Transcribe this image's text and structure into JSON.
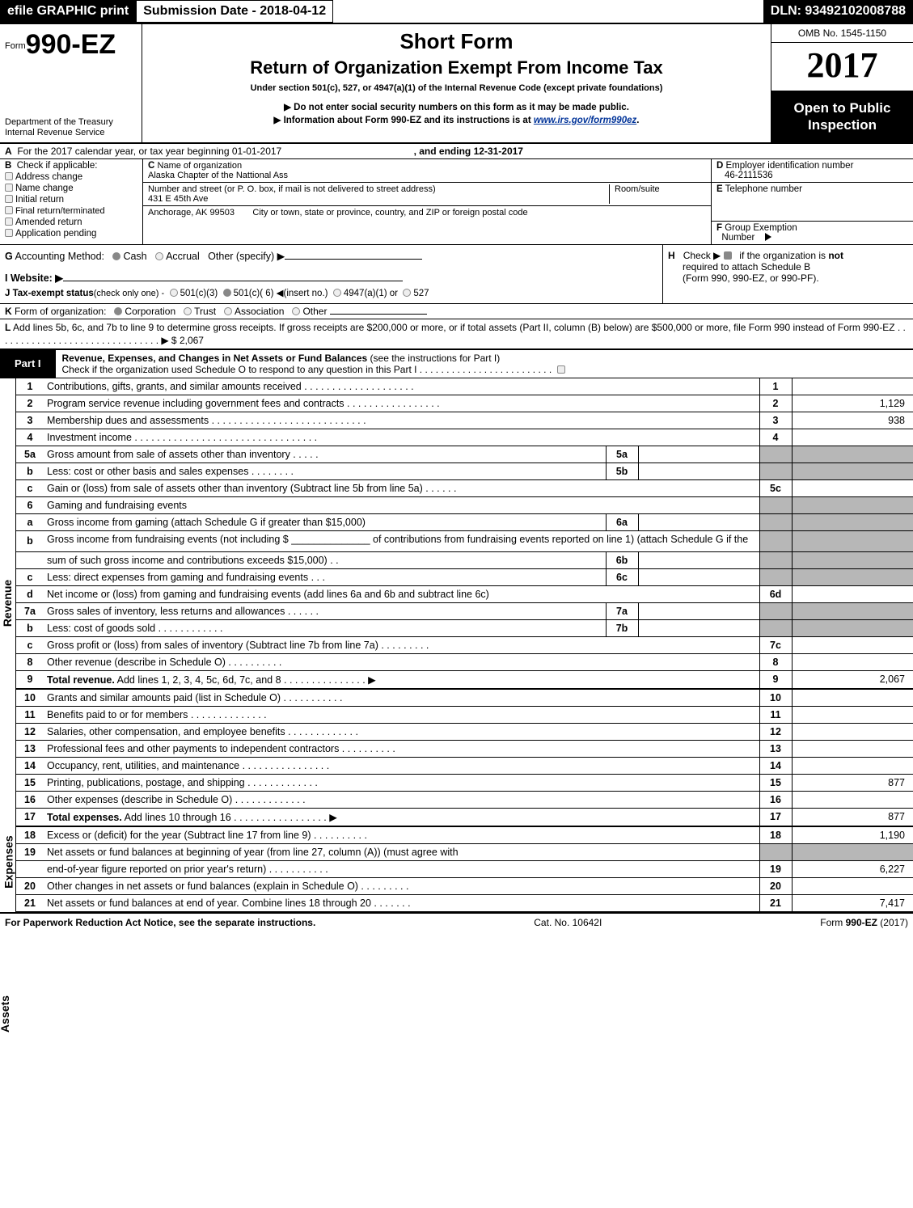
{
  "topbar": {
    "efile_label": "efile GRAPHIC print",
    "submission_label": "Submission Date - 2018-04-12",
    "dln_label": "DLN: 93492102008788"
  },
  "header": {
    "form_prefix": "Form",
    "form_number": "990-EZ",
    "dept1": "Department of the Treasury",
    "dept2": "Internal Revenue Service",
    "title1": "Short Form",
    "title2": "Return of Organization Exempt From Income Tax",
    "subtitle": "Under section 501(c), 527, or 4947(a)(1) of the Internal Revenue Code (except private foundations)",
    "note1": "▶ Do not enter social security numbers on this form as it may be made public.",
    "note2_pre": "▶ Information about Form 990-EZ and its instructions is at ",
    "note2_link": "www.irs.gov/form990ez",
    "note2_post": ".",
    "omb": "OMB No. 1545-1150",
    "year": "2017",
    "open1": "Open to Public",
    "open2": "Inspection"
  },
  "lineA": {
    "text_pre": "For the 2017 calendar year, or tax year beginning 01-01-2017",
    "text_mid": ", and ending 12-31-2017",
    "label": "A"
  },
  "boxB": {
    "label": "B",
    "title": "Check if applicable:",
    "items": [
      "Address change",
      "Name change",
      "Initial return",
      "Final return/terminated",
      "Amended return",
      "Application pending"
    ]
  },
  "boxC": {
    "label": "C",
    "name_label": "Name of organization",
    "name": "Alaska Chapter of the Nattional Ass",
    "addr_label": "Number and street (or P. O. box, if mail is not delivered to street address)",
    "room_label": "Room/suite",
    "addr": "431 E 45th Ave",
    "city_label": "City or town, state or province, country, and ZIP or foreign postal code",
    "city": "Anchorage, AK  99503"
  },
  "boxD": {
    "label": "D",
    "title": "Employer identification number",
    "value": "46-2111536"
  },
  "boxE": {
    "label": "E",
    "title": "Telephone number",
    "value": ""
  },
  "boxF": {
    "label": "F",
    "title": "Group Exemption",
    "title2": "Number",
    "arrow": "▶"
  },
  "lineG": {
    "label": "G",
    "text": "Accounting Method:",
    "opts": [
      "Cash",
      "Accrual"
    ],
    "other": "Other (specify) ▶",
    "sel": 0
  },
  "lineH": {
    "label": "H",
    "text1": "Check ▶",
    "text2": "if the organization is ",
    "not": "not",
    "text3": "required to attach Schedule B",
    "text4": "(Form 990, 990-EZ, or 990-PF)."
  },
  "lineI": {
    "label": "I",
    "text": "Website: ▶"
  },
  "lineJ": {
    "label": "J",
    "text": "Tax-exempt status",
    "sub": "(check only one) -",
    "opts": [
      "501(c)(3)",
      "501(c)( 6) ◀(insert no.)",
      "4947(a)(1) or",
      "527"
    ],
    "sel": 1
  },
  "lineK": {
    "label": "K",
    "text": "Form of organization:",
    "opts": [
      "Corporation",
      "Trust",
      "Association",
      "Other"
    ],
    "sel": 0
  },
  "lineL": {
    "label": "L",
    "text": "Add lines 5b, 6c, and 7b to line 9 to determine gross receipts. If gross receipts are $200,000 or more, or if total assets (Part II, column (B) below) are $500,000 or more, file Form 990 instead of Form 990-EZ  .  .  .  .  .  .  .  .  .  .  .  .  .  .  .  .  .  .  .  .  .  .  .  .  .  .  .  .  .  .  . ▶ $ 2,067"
  },
  "part1": {
    "label": "Part I",
    "title": "Revenue, Expenses, and Changes in Net Assets or Fund Balances",
    "sub": "(see the instructions for Part I)",
    "check_line": "Check if the organization used Schedule O to respond to any question in this Part I .  .  .  .  .  .  .  .  .  .  .  .  .  .  .  .  .  .  .  .  .  .  .  .  ."
  },
  "sections": {
    "revenue_label": "Revenue",
    "expenses_label": "Expenses",
    "netassets_label": "Net Assets"
  },
  "lines": [
    {
      "n": "1",
      "desc": "Contributions, gifts, grants, and similar amounts received  .  .  .  .  .  .  .  .  .  .  .  .  .  .  .  .  .  .  .  .",
      "box": "1",
      "val": ""
    },
    {
      "n": "2",
      "desc": "Program service revenue including government fees and contracts  .  .  .  .  .  .  .  .  .  .  .  .  .  .  .  .  .",
      "box": "2",
      "val": "1,129"
    },
    {
      "n": "3",
      "desc": "Membership dues and assessments  .  .  .  .  .  .  .  .  .  .  .  .  .  .  .  .  .  .  .  .  .  .  .  .  .  .  .  .",
      "box": "3",
      "val": "938"
    },
    {
      "n": "4",
      "desc": "Investment income  .  .  .  .  .  .  .  .  .  .  .  .  .  .  .  .  .  .  .  .  .  .  .  .  .  .  .  .  .  .  .  .  .",
      "box": "4",
      "val": ""
    },
    {
      "n": "5a",
      "desc": "Gross amount from sale of assets other than inventory  .  .  .  .  .",
      "mid": "5a",
      "midval": "",
      "shade": true
    },
    {
      "n": "b",
      "desc": "Less: cost or other basis and sales expenses  .  .  .  .  .  .  .  .",
      "mid": "5b",
      "midval": "",
      "shade": true
    },
    {
      "n": "c",
      "desc": "Gain or (loss) from sale of assets other than inventory (Subtract line 5b from line 5a)             .     .     .     .     .     .",
      "box": "5c",
      "val": ""
    },
    {
      "n": "6",
      "desc": "Gaming and fundraising events",
      "shade": true,
      "noright": true
    },
    {
      "n": "a",
      "desc": "Gross income from gaming (attach Schedule G if greater than $15,000)",
      "mid": "6a",
      "midval": "",
      "shade": true
    },
    {
      "n": "b",
      "desc": "Gross income from fundraising events (not including $ ______________ of contributions from fundraising events reported on line 1) (attach Schedule G if the",
      "shade": true,
      "noright": true,
      "tall": true
    },
    {
      "n": "",
      "desc": "sum of such gross income and contributions exceeds $15,000)        .    .",
      "mid": "6b",
      "midval": "",
      "shade": true
    },
    {
      "n": "c",
      "desc": "Less: direct expenses from gaming and fundraising events       .     .     .",
      "mid": "6c",
      "midval": "",
      "shade": true
    },
    {
      "n": "d",
      "desc": "Net income or (loss) from gaming and fundraising events (add lines 6a and 6b and subtract line 6c)",
      "box": "6d",
      "val": ""
    },
    {
      "n": "7a",
      "desc": "Gross sales of inventory, less returns and allowances            .     .     .     .     .     .",
      "mid": "7a",
      "midval": "",
      "shade": true
    },
    {
      "n": "b",
      "desc": "Less: cost of goods sold                            .  .  .  .  .  .  .  .  .  .  .  .",
      "mid": "7b",
      "midval": "",
      "shade": true
    },
    {
      "n": "c",
      "desc": "Gross profit or (loss) from sales of inventory (Subtract line 7b from line 7a)             .   .   .   .   .   .   .   .   .",
      "box": "7c",
      "val": ""
    },
    {
      "n": "8",
      "desc": "Other revenue (describe in Schedule O)                                          .    .    .    .    .    .    .    .    .    .",
      "box": "8",
      "val": ""
    },
    {
      "n": "9",
      "desc": "Total revenue. Add lines 1, 2, 3, 4, 5c, 6d, 7c, and 8          .   .   .   .   .   .   .   .   .   .   .   .   .   .   .  ▶",
      "box": "9",
      "val": "2,067",
      "bold": true
    },
    {
      "n": "10",
      "desc": "Grants and similar amounts paid (list in Schedule O)                          .    .    .    .    .    .    .    .    .    .    .",
      "box": "10",
      "val": "",
      "sec": "exp"
    },
    {
      "n": "11",
      "desc": "Benefits paid to or for members                                    .    .    .    .    .    .    .    .    .    .    .    .    .    .",
      "box": "11",
      "val": "",
      "sec": "exp"
    },
    {
      "n": "12",
      "desc": "Salaries, other compensation, and employee benefits              .    .    .    .    .    .    .    .    .    .    .    .    .",
      "box": "12",
      "val": "",
      "sec": "exp"
    },
    {
      "n": "13",
      "desc": "Professional fees and other payments to independent contractors        .    .    .    .    .    .    .    .    .    .",
      "box": "13",
      "val": "",
      "sec": "exp"
    },
    {
      "n": "14",
      "desc": "Occupancy, rent, utilities, and maintenance            .    .    .    .    .    .    .    .    .    .    .    .    .    .    .    .",
      "box": "14",
      "val": "",
      "sec": "exp"
    },
    {
      "n": "15",
      "desc": "Printing, publications, postage, and shipping                        .    .    .    .    .    .    .    .    .    .    .    .    .",
      "box": "15",
      "val": "877",
      "sec": "exp"
    },
    {
      "n": "16",
      "desc": "Other expenses (describe in Schedule O)                              .    .    .    .    .    .    .    .    .    .    .    .    .",
      "box": "16",
      "val": "",
      "sec": "exp"
    },
    {
      "n": "17",
      "desc": "Total expenses. Add lines 10 through 16                  .   .   .   .   .   .   .   .   .   .   .   .   .   .   .   .   .  ▶",
      "box": "17",
      "val": "877",
      "bold": true,
      "sec": "exp"
    },
    {
      "n": "18",
      "desc": "Excess or (deficit) for the year (Subtract line 17 from line 9)                  .    .    .    .    .    .    .    .    .    .",
      "box": "18",
      "val": "1,190",
      "sec": "net"
    },
    {
      "n": "19",
      "desc": "Net assets or fund balances at beginning of year (from line 27, column (A)) (must agree with",
      "shade": true,
      "noright": true,
      "sec": "net"
    },
    {
      "n": "",
      "desc": "end-of-year figure reported on prior year's return)                          .    .    .    .    .    .    .    .    .    .    .",
      "box": "19",
      "val": "6,227",
      "sec": "net"
    },
    {
      "n": "20",
      "desc": "Other changes in net assets or fund balances (explain in Schedule O)          .    .    .    .    .    .    .    .    .",
      "box": "20",
      "val": "",
      "sec": "net"
    },
    {
      "n": "21",
      "desc": "Net assets or fund balances at end of year. Combine lines 18 through 20              .    .    .    .    .    .    .",
      "box": "21",
      "val": "7,417",
      "sec": "net"
    }
  ],
  "footer": {
    "left": "For Paperwork Reduction Act Notice, see the separate instructions.",
    "mid": "Cat. No. 10642I",
    "right_pre": "Form ",
    "right_form": "990-EZ",
    "right_post": " (2017)"
  }
}
